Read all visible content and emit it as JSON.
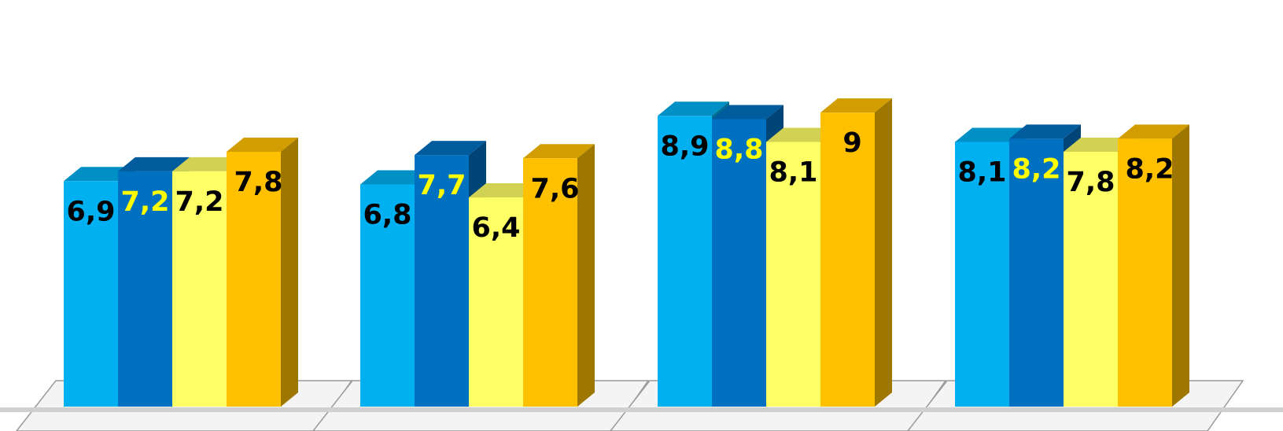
{
  "chart_data": {
    "type": "bar",
    "style": "3d-clustered-column",
    "categories": [
      "",
      "",
      "",
      ""
    ],
    "series": [
      {
        "values": [
          6.9,
          6.8,
          8.9,
          8.1
        ],
        "color": "#00B0F0",
        "label_color": "#000000"
      },
      {
        "values": [
          7.2,
          7.7,
          8.8,
          8.2
        ],
        "color": "#0070C0",
        "label_color": "#FFFF00"
      },
      {
        "values": [
          7.2,
          6.4,
          8.1,
          7.8
        ],
        "color": "#FFFF66",
        "label_color": "#000000"
      },
      {
        "values": [
          7.8,
          7.6,
          9,
          8.2
        ],
        "color": "#FFC000",
        "label_color": "#000000"
      }
    ],
    "data_labels": [
      [
        "6,9",
        "6,8",
        "8,9",
        "8,1"
      ],
      [
        "7,2",
        "7,7",
        "8,8",
        "8,2"
      ],
      [
        "7,2",
        "6,4",
        "8,1",
        "7,8"
      ],
      [
        "7,8",
        "7,6",
        "9",
        "8,2"
      ]
    ],
    "legend": "none",
    "gridlines": false,
    "axes_visible": false
  }
}
